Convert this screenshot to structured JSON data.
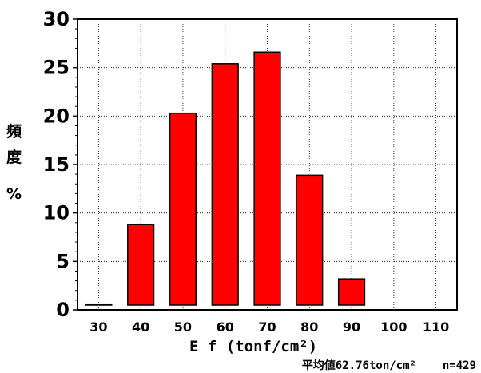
{
  "chart_data": {
    "type": "bar",
    "categories": [
      "30",
      "40",
      "50",
      "60",
      "70",
      "80",
      "90",
      "100",
      "110"
    ],
    "values": [
      0.6,
      8.8,
      20.3,
      25.4,
      26.6,
      13.9,
      3.2,
      0,
      0
    ],
    "ylim": [
      0,
      30
    ],
    "yticks": [
      "0",
      "5",
      "10",
      "15",
      "20",
      "25",
      "30"
    ],
    "ytick_values": [
      0,
      5,
      10,
      15,
      20,
      25,
      30
    ],
    "ylabel_chars": [
      "頻",
      "度"
    ],
    "ylabel_unit": "%",
    "xlabel": "E f (tonf/cm²)",
    "grid": true,
    "bar_color": "#ff0000"
  },
  "note": {
    "mean": "平均値62.76ton/cm²",
    "n": "n=429"
  }
}
